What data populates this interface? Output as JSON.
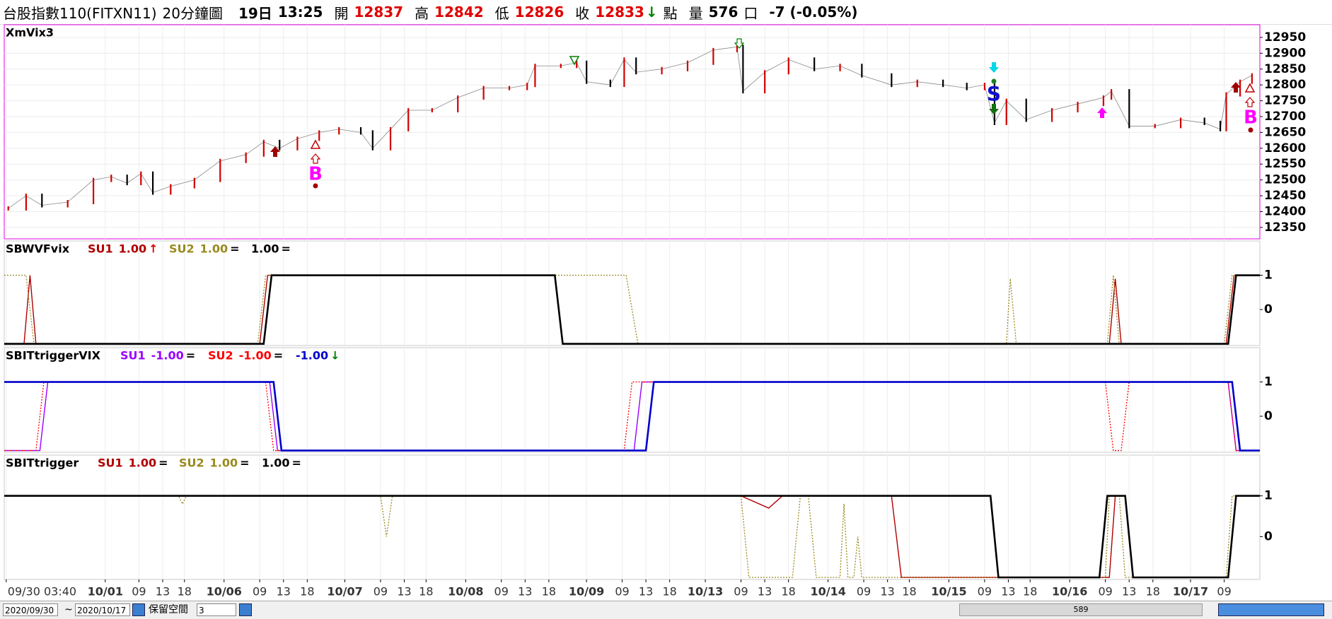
{
  "header": {
    "symbol": "台股指數110(FITXN11)",
    "interval": "20分鐘圖",
    "day": "19日",
    "time": "13:25",
    "open_label": "開",
    "open": 12837,
    "high_label": "高",
    "high": 12842,
    "low_label": "低",
    "low": 12826,
    "close_label": "收",
    "close": 12833,
    "change_arrow": "↓",
    "point_label": "點",
    "volume_label": "量",
    "volume": 576,
    "unit_label": "口",
    "change": "-7 (-0.05%)"
  },
  "annotations": {
    "buy_1": "B",
    "sell": "S",
    "buy_2": "B"
  },
  "chart_data": [
    {
      "type": "line",
      "title": "XmVix3",
      "xlim": [
        0,
        634
      ],
      "ylim": [
        12314,
        12990
      ],
      "yticks": [
        12350,
        12400,
        12450,
        12500,
        12550,
        12600,
        12650,
        12700,
        12750,
        12800,
        12850,
        12900,
        12950
      ],
      "grid": true,
      "series": [
        {
          "up_color": "#d00000",
          "down_color": "#000000",
          "x": [
            2,
            11,
            19,
            32,
            45,
            54,
            62,
            69,
            75,
            84,
            96,
            109,
            122,
            131,
            139,
            148,
            159,
            169,
            180,
            186,
            195,
            204,
            216,
            229,
            242,
            255,
            264,
            268,
            281,
            289,
            294,
            306,
            313,
            319,
            332,
            345,
            358,
            370,
            373,
            384,
            396,
            409,
            422,
            433,
            448,
            461,
            474,
            486,
            495,
            500,
            506,
            516,
            529,
            542,
            555,
            559,
            568,
            581,
            594,
            606,
            614,
            617,
            624,
            630
          ],
          "values": [
            12410,
            12450,
            12420,
            12430,
            12500,
            12510,
            12490,
            12520,
            12460,
            12480,
            12500,
            12560,
            12580,
            12620,
            12600,
            12630,
            12650,
            12660,
            12650,
            12600,
            12660,
            12720,
            12720,
            12760,
            12790,
            12790,
            12800,
            12860,
            12860,
            12870,
            12810,
            12800,
            12880,
            12840,
            12850,
            12870,
            12910,
            12920,
            12780,
            12840,
            12880,
            12850,
            12860,
            12830,
            12800,
            12810,
            12800,
            12790,
            12800,
            12680,
            12750,
            12690,
            12720,
            12740,
            12760,
            12780,
            12670,
            12670,
            12690,
            12680,
            12660,
            12770,
            12810,
            12830
          ]
        }
      ]
    },
    {
      "type": "line",
      "title": "SBWVFvix",
      "xlim": [
        0,
        634
      ],
      "ylim": [
        -1.05,
        2
      ],
      "yticks": [
        1,
        0
      ],
      "grid": true,
      "series": [
        {
          "name": "SU1",
          "last_label": "1.00",
          "marker": "↑",
          "color": "#b00000",
          "dashed": false,
          "x": [
            0,
            10,
            13,
            16,
            129,
            133,
            278,
            282,
            558,
            561,
            564,
            617,
            621,
            634
          ],
          "values": [
            -1,
            -1,
            1,
            -1,
            -1,
            1,
            1,
            -1,
            -1,
            0.9,
            -1,
            -1,
            1,
            1
          ]
        },
        {
          "name": "SU2",
          "last_label": "1.00",
          "marker": "=",
          "color": "#9a8a20",
          "dashed": true,
          "x": [
            0,
            11,
            15,
            128,
            132,
            314,
            320,
            506,
            508,
            511,
            557,
            560,
            563,
            616,
            620,
            634
          ],
          "values": [
            1,
            1,
            -1,
            -1,
            1,
            1,
            -1,
            -1,
            0.9,
            -1,
            -1,
            1,
            -1,
            -1,
            1,
            1
          ]
        },
        {
          "last_label": "1.00",
          "marker": "=",
          "color": "#000000",
          "dashed": false,
          "x": [
            0,
            131,
            135,
            278,
            282,
            618,
            622,
            634
          ],
          "values": [
            -1,
            -1,
            1,
            1,
            -1,
            -1,
            1,
            1
          ]
        }
      ]
    },
    {
      "type": "line",
      "title": "SBITtriggerVIX",
      "xlim": [
        0,
        634
      ],
      "ylim": [
        -1.05,
        2
      ],
      "yticks": [
        1,
        0
      ],
      "grid": true,
      "series": [
        {
          "name": "SU1",
          "last_label": "-1.00",
          "marker": "=",
          "color": "#9900ff",
          "dashed": false,
          "x": [
            0,
            18,
            22,
            134,
            138,
            318,
            322,
            618,
            622,
            634
          ],
          "values": [
            -1,
            -1,
            1,
            1,
            -1,
            -1,
            1,
            1,
            -1,
            -1
          ]
        },
        {
          "name": "SU2",
          "last_label": "-1.00",
          "marker": "=",
          "color": "#ff0000",
          "dashed": true,
          "x": [
            0,
            16,
            20,
            132,
            136,
            313,
            317,
            556,
            560,
            564,
            568,
            618,
            622,
            634
          ],
          "values": [
            -1,
            -1,
            1,
            1,
            -1,
            -1,
            1,
            1,
            -1,
            -1,
            1,
            1,
            -1,
            -1
          ]
        },
        {
          "last_label": "-1.00",
          "marker": "↓",
          "color": "#0000cc",
          "dashed": false,
          "x": [
            0,
            136,
            140,
            324,
            328,
            620,
            624,
            634
          ],
          "values": [
            1,
            1,
            -1,
            -1,
            1,
            1,
            -1,
            -1
          ]
        }
      ]
    },
    {
      "type": "line",
      "title": "SBITtrigger",
      "xlim": [
        0,
        634
      ],
      "ylim": [
        -1.05,
        2
      ],
      "yticks": [
        1,
        0
      ],
      "grid": true,
      "xticks": [
        {
          "value": 1,
          "label": "09/30 03:40"
        },
        {
          "value": 51,
          "label": "10/01"
        },
        {
          "value": 68,
          "label": "09"
        },
        {
          "value": 80,
          "label": "13"
        },
        {
          "value": 91,
          "label": "18"
        },
        {
          "value": 111,
          "label": "10/06"
        },
        {
          "value": 129,
          "label": "09"
        },
        {
          "value": 141,
          "label": "13"
        },
        {
          "value": 153,
          "label": "18"
        },
        {
          "value": 172,
          "label": "10/07"
        },
        {
          "value": 190,
          "label": "09"
        },
        {
          "value": 202,
          "label": "13"
        },
        {
          "value": 213,
          "label": "18"
        },
        {
          "value": 233,
          "label": "10/08"
        },
        {
          "value": 251,
          "label": "09"
        },
        {
          "value": 263,
          "label": "13"
        },
        {
          "value": 275,
          "label": "18"
        },
        {
          "value": 294,
          "label": "10/09"
        },
        {
          "value": 312,
          "label": "09"
        },
        {
          "value": 324,
          "label": "13"
        },
        {
          "value": 336,
          "label": "18"
        },
        {
          "value": 354,
          "label": "10/13"
        },
        {
          "value": 372,
          "label": "09"
        },
        {
          "value": 384,
          "label": "13"
        },
        {
          "value": 396,
          "label": "18"
        },
        {
          "value": 416,
          "label": "10/14"
        },
        {
          "value": 434,
          "label": "09"
        },
        {
          "value": 446,
          "label": "13"
        },
        {
          "value": 457,
          "label": "18"
        },
        {
          "value": 477,
          "label": "10/15"
        },
        {
          "value": 495,
          "label": "09"
        },
        {
          "value": 507,
          "label": "13"
        },
        {
          "value": 518,
          "label": "18"
        },
        {
          "value": 538,
          "label": "10/16"
        },
        {
          "value": 556,
          "label": "09"
        },
        {
          "value": 568,
          "label": "13"
        },
        {
          "value": 580,
          "label": "18"
        },
        {
          "value": 599,
          "label": "10/17"
        },
        {
          "value": 616,
          "label": "09"
        }
      ],
      "series": [
        {
          "name": "SU1",
          "last_label": "1.00",
          "marker": "=",
          "color": "#b00000",
          "dashed": false,
          "x": [
            0,
            372,
            386,
            393,
            448,
            453,
            558,
            561,
            566,
            570,
            618,
            622,
            634
          ],
          "values": [
            1,
            1,
            0.7,
            1,
            1,
            -1,
            -1,
            1,
            1,
            -1,
            -1,
            1,
            1
          ]
        },
        {
          "name": "SU2",
          "last_label": "1.00",
          "marker": "=",
          "color": "#9a8a20",
          "dashed": true,
          "x": [
            0,
            88,
            90,
            92,
            190,
            193,
            196,
            372,
            376,
            398,
            402,
            406,
            410,
            422,
            424,
            426,
            429,
            431,
            433,
            448,
            556,
            558,
            563,
            566,
            617,
            620,
            634
          ],
          "values": [
            1,
            1,
            0.8,
            1,
            1,
            0,
            1,
            1,
            -1,
            -1,
            1,
            1,
            -1,
            -1,
            0.8,
            -1,
            -1,
            0,
            -1,
            -1,
            -1,
            1,
            1,
            -1,
            -1,
            1,
            1
          ]
        },
        {
          "last_label": "1.00",
          "marker": "=",
          "color": "#000000",
          "dashed": false,
          "x": [
            0,
            498,
            502,
            553,
            557,
            566,
            570,
            618,
            622,
            634
          ],
          "values": [
            1,
            1,
            -1,
            -1,
            1,
            1,
            -1,
            -1,
            1,
            1
          ]
        }
      ]
    }
  ],
  "toolbar": {
    "from": "2020/09/30",
    "sep": "~",
    "to": "2020/10/17",
    "reserve_label": "保留空間",
    "reserve": 3,
    "scroll_value": 589
  }
}
